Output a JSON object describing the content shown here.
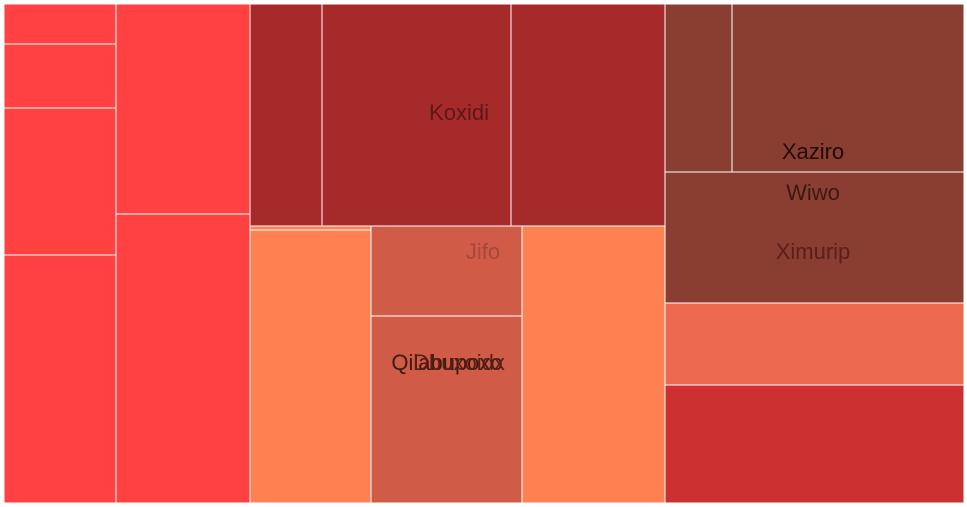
{
  "chart_data": {
    "type": "treemap",
    "colors": {
      "bright_red": "#ff4141",
      "dark_red": "#a72a2b",
      "brown": "#8a3d31",
      "orange": "#ff8151",
      "terracotta": "#d05c47",
      "salmon": "#ec6950",
      "crimson": "#cd3031"
    },
    "cells": [
      {
        "id": "c1",
        "label": "",
        "color": "bright_red",
        "value": 4.5
      },
      {
        "id": "c2",
        "label": "",
        "color": "bright_red",
        "value": 7.1
      },
      {
        "id": "c3",
        "label": "",
        "color": "bright_red",
        "value": 16.4
      },
      {
        "id": "c4",
        "label": "",
        "color": "bright_red",
        "value": 27.8
      },
      {
        "id": "c5",
        "label": "",
        "color": "bright_red",
        "value": 28.1
      },
      {
        "id": "c6",
        "label": "",
        "color": "bright_red",
        "value": 38.3
      },
      {
        "id": "c7",
        "label": "",
        "color": "dark_red",
        "value": 16.0
      },
      {
        "id": "c8",
        "label": "Koxidi",
        "color": "dark_red",
        "value": 41.7
      },
      {
        "id": "c9",
        "label": "",
        "color": "dark_red",
        "value": 34.5
      },
      {
        "id": "c10",
        "label": "",
        "color": "orange",
        "value": 33.6
      },
      {
        "id": "c11",
        "label": "Jifo",
        "color": "terracotta",
        "value": 13.6
      },
      {
        "id": "c12",
        "label": "Qilabupoxo",
        "color": "terracotta",
        "value": 27.5
      },
      {
        "id": "c13",
        "label": "",
        "color": "orange",
        "value": 21.3
      },
      {
        "id": "c14",
        "label": "",
        "color": "brown",
        "value": 11.5
      },
      {
        "id": "c15",
        "label": "Xaziro",
        "color": "brown",
        "value": 39.1
      },
      {
        "id": "c16",
        "label": "Ximurip",
        "color": "brown",
        "value": 38.7
      },
      {
        "id": "c17",
        "label": "",
        "color": "salmon",
        "value": 24.3
      },
      {
        "id": "c18",
        "label": "",
        "color": "crimson",
        "value": 35.6
      }
    ],
    "overlay_labels": [
      {
        "id": "o1",
        "label": "Wiwo",
        "color": "#3a1a14"
      },
      {
        "id": "o2",
        "label": "Dbuxoidx",
        "color": "#5a1f14"
      }
    ]
  }
}
